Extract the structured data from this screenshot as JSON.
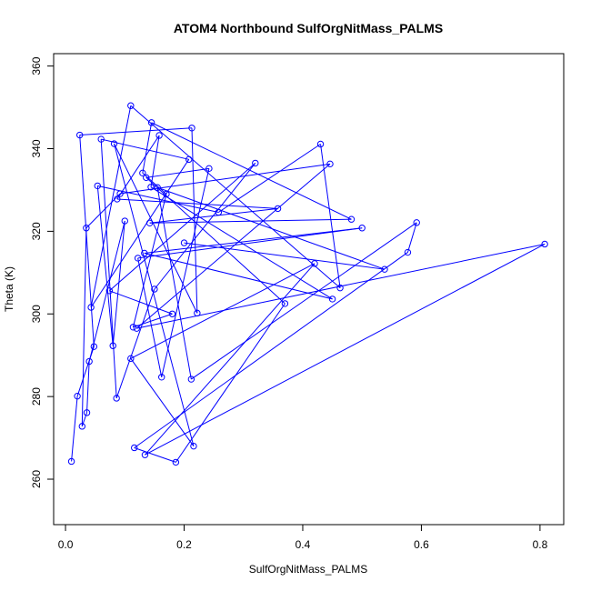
{
  "chart_data": {
    "type": "line",
    "title": "ATOM4 Northbound SulfOrgNitMass_PALMS",
    "xlabel": "SulfOrgNitMass_PALMS",
    "ylabel": "Theta (K)",
    "xlim": [
      -0.02,
      0.84
    ],
    "ylim": [
      249,
      363
    ],
    "xticks": [
      0.0,
      0.2,
      0.4,
      0.6,
      0.8
    ],
    "xtick_labels": [
      "0.0",
      "0.2",
      "0.4",
      "0.6",
      "0.8"
    ],
    "yticks": [
      260,
      280,
      300,
      320,
      340,
      360
    ],
    "ytick_labels": [
      "260",
      "280",
      "300",
      "320",
      "340",
      "360"
    ],
    "grid": false,
    "series": [
      {
        "color": "#0000ff",
        "marker": "open-circle",
        "points": [
          [
            0.01,
            264.3
          ],
          [
            0.02,
            280.1
          ],
          [
            0.028,
            272.8
          ],
          [
            0.036,
            276.1
          ],
          [
            0.04,
            288.5
          ],
          [
            0.043,
            301.6
          ],
          [
            0.048,
            292.1
          ],
          [
            0.035,
            320.8
          ],
          [
            0.054,
            331.0
          ],
          [
            0.024,
            343.3
          ],
          [
            0.06,
            342.3
          ],
          [
            0.074,
            305.6
          ],
          [
            0.08,
            292.3
          ],
          [
            0.082,
            341.2
          ],
          [
            0.086,
            279.6
          ],
          [
            0.087,
            327.8
          ],
          [
            0.092,
            329.1
          ],
          [
            0.1,
            322.5
          ],
          [
            0.11,
            289.2
          ],
          [
            0.114,
            296.8
          ],
          [
            0.12,
            296.5
          ],
          [
            0.13,
            334.1
          ],
          [
            0.133,
            314.7
          ],
          [
            0.136,
            333.0
          ],
          [
            0.142,
            322.0
          ],
          [
            0.145,
            346.3
          ],
          [
            0.15,
            306.0
          ],
          [
            0.155,
            330.6
          ],
          [
            0.158,
            343.2
          ],
          [
            0.162,
            284.7
          ],
          [
            0.17,
            329.0
          ],
          [
            0.18,
            300.0
          ],
          [
            0.2,
            317.2
          ],
          [
            0.208,
            337.4
          ],
          [
            0.212,
            284.2
          ],
          [
            0.213,
            345.0
          ],
          [
            0.216,
            268.0
          ],
          [
            0.222,
            300.2
          ],
          [
            0.242,
            335.2
          ],
          [
            0.258,
            324.6
          ],
          [
            0.32,
            336.5
          ],
          [
            0.358,
            325.5
          ],
          [
            0.37,
            302.5
          ],
          [
            0.42,
            312.2
          ],
          [
            0.43,
            341.1
          ],
          [
            0.446,
            336.3
          ],
          [
            0.45,
            303.6
          ],
          [
            0.463,
            306.3
          ],
          [
            0.482,
            322.9
          ],
          [
            0.5,
            320.8
          ],
          [
            0.538,
            310.8
          ],
          [
            0.577,
            314.9
          ],
          [
            0.592,
            322.1
          ],
          [
            0.808,
            316.9
          ],
          [
            0.186,
            264.1
          ],
          [
            0.134,
            265.9
          ],
          [
            0.116,
            267.6
          ],
          [
            0.11,
            350.4
          ],
          [
            0.122,
            313.5
          ],
          [
            0.144,
            330.7
          ]
        ],
        "path_order": [
          0,
          1,
          6,
          9,
          35,
          37,
          13,
          36,
          18,
          43,
          55,
          53,
          20,
          45,
          16,
          7,
          2,
          3,
          4,
          17,
          12,
          8,
          39,
          44,
          47,
          57,
          5,
          33,
          10,
          14,
          26,
          40,
          11,
          31,
          19,
          30,
          21,
          25,
          48,
          24,
          41,
          15,
          28,
          59,
          46,
          22,
          49,
          58,
          29,
          38,
          23,
          42,
          54,
          56,
          51,
          52,
          34,
          27,
          50,
          32
        ]
      }
    ]
  }
}
